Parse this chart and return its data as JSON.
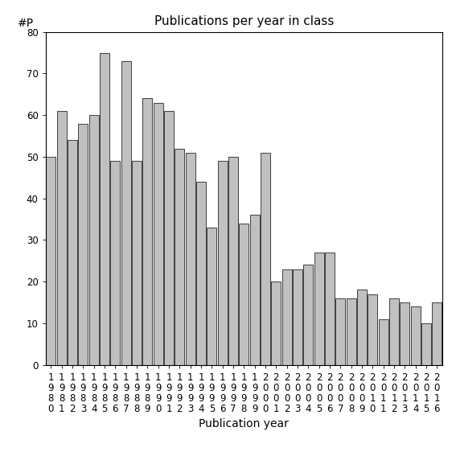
{
  "title": "Publications per year in class",
  "xlabel": "Publication year",
  "ylabel": "#P",
  "years": [
    "1980",
    "1981",
    "1982",
    "1983",
    "1984",
    "1985",
    "1986",
    "1987",
    "1988",
    "1989",
    "1990",
    "1991",
    "1992",
    "1993",
    "1994",
    "1995",
    "1996",
    "1997",
    "1998",
    "1999",
    "2000",
    "2001",
    "2002",
    "2003",
    "2004",
    "2005",
    "2006",
    "2007",
    "2008",
    "2009",
    "2010",
    "2011",
    "2012",
    "2013",
    "2014",
    "2015",
    "2016"
  ],
  "values": [
    50,
    61,
    54,
    58,
    60,
    75,
    49,
    73,
    49,
    64,
    63,
    61,
    52,
    51,
    44,
    33,
    49,
    50,
    34,
    36,
    51,
    20,
    23,
    23,
    24,
    27,
    27,
    16,
    16,
    18,
    17,
    11,
    16,
    15,
    14,
    10,
    15
  ],
  "bar_color": "#c0c0c0",
  "bar_edgecolor": "#000000",
  "ylim": [
    0,
    80
  ],
  "yticks": [
    0,
    10,
    20,
    30,
    40,
    50,
    60,
    70,
    80
  ],
  "background_color": "#ffffff",
  "title_fontsize": 11,
  "axis_label_fontsize": 10,
  "tick_fontsize": 8.5
}
